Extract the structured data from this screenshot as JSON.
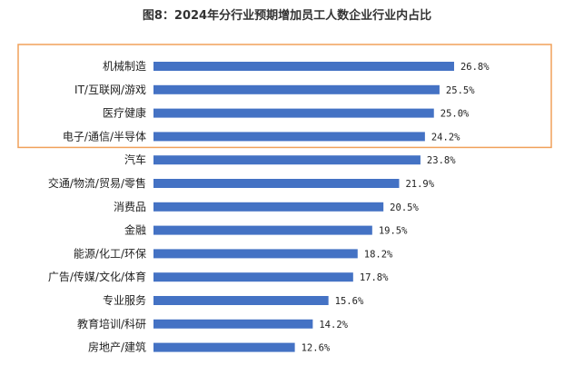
{
  "chart_data": {
    "type": "bar",
    "orientation": "horizontal",
    "title": "图8：2024年分行业预期增加员工人数企业行业内占比",
    "categories": [
      "机械制造",
      "IT/互联网/游戏",
      "医疗健康",
      "电子/通信/半导体",
      "汽车",
      "交通/物流/贸易/零售",
      "消费品",
      "金融",
      "能源/化工/环保",
      "广告/传媒/文化/体育",
      "专业服务",
      "教育培训/科研",
      "房地产/建筑"
    ],
    "values": [
      26.8,
      25.5,
      25.0,
      24.2,
      23.8,
      21.9,
      20.5,
      19.5,
      18.2,
      17.8,
      15.6,
      14.2,
      12.6
    ],
    "value_labels": [
      "26.8%",
      "25.5%",
      "25.0%",
      "24.2%",
      "23.8%",
      "21.9%",
      "20.5%",
      "19.5%",
      "18.2%",
      "17.8%",
      "15.6%",
      "14.2%",
      "12.6%"
    ],
    "xlim": [
      0,
      30
    ],
    "grid": false,
    "bar_color": "#4472c4",
    "highlight": {
      "categories_top_n": 4,
      "border_color": "#f0a15a"
    }
  }
}
